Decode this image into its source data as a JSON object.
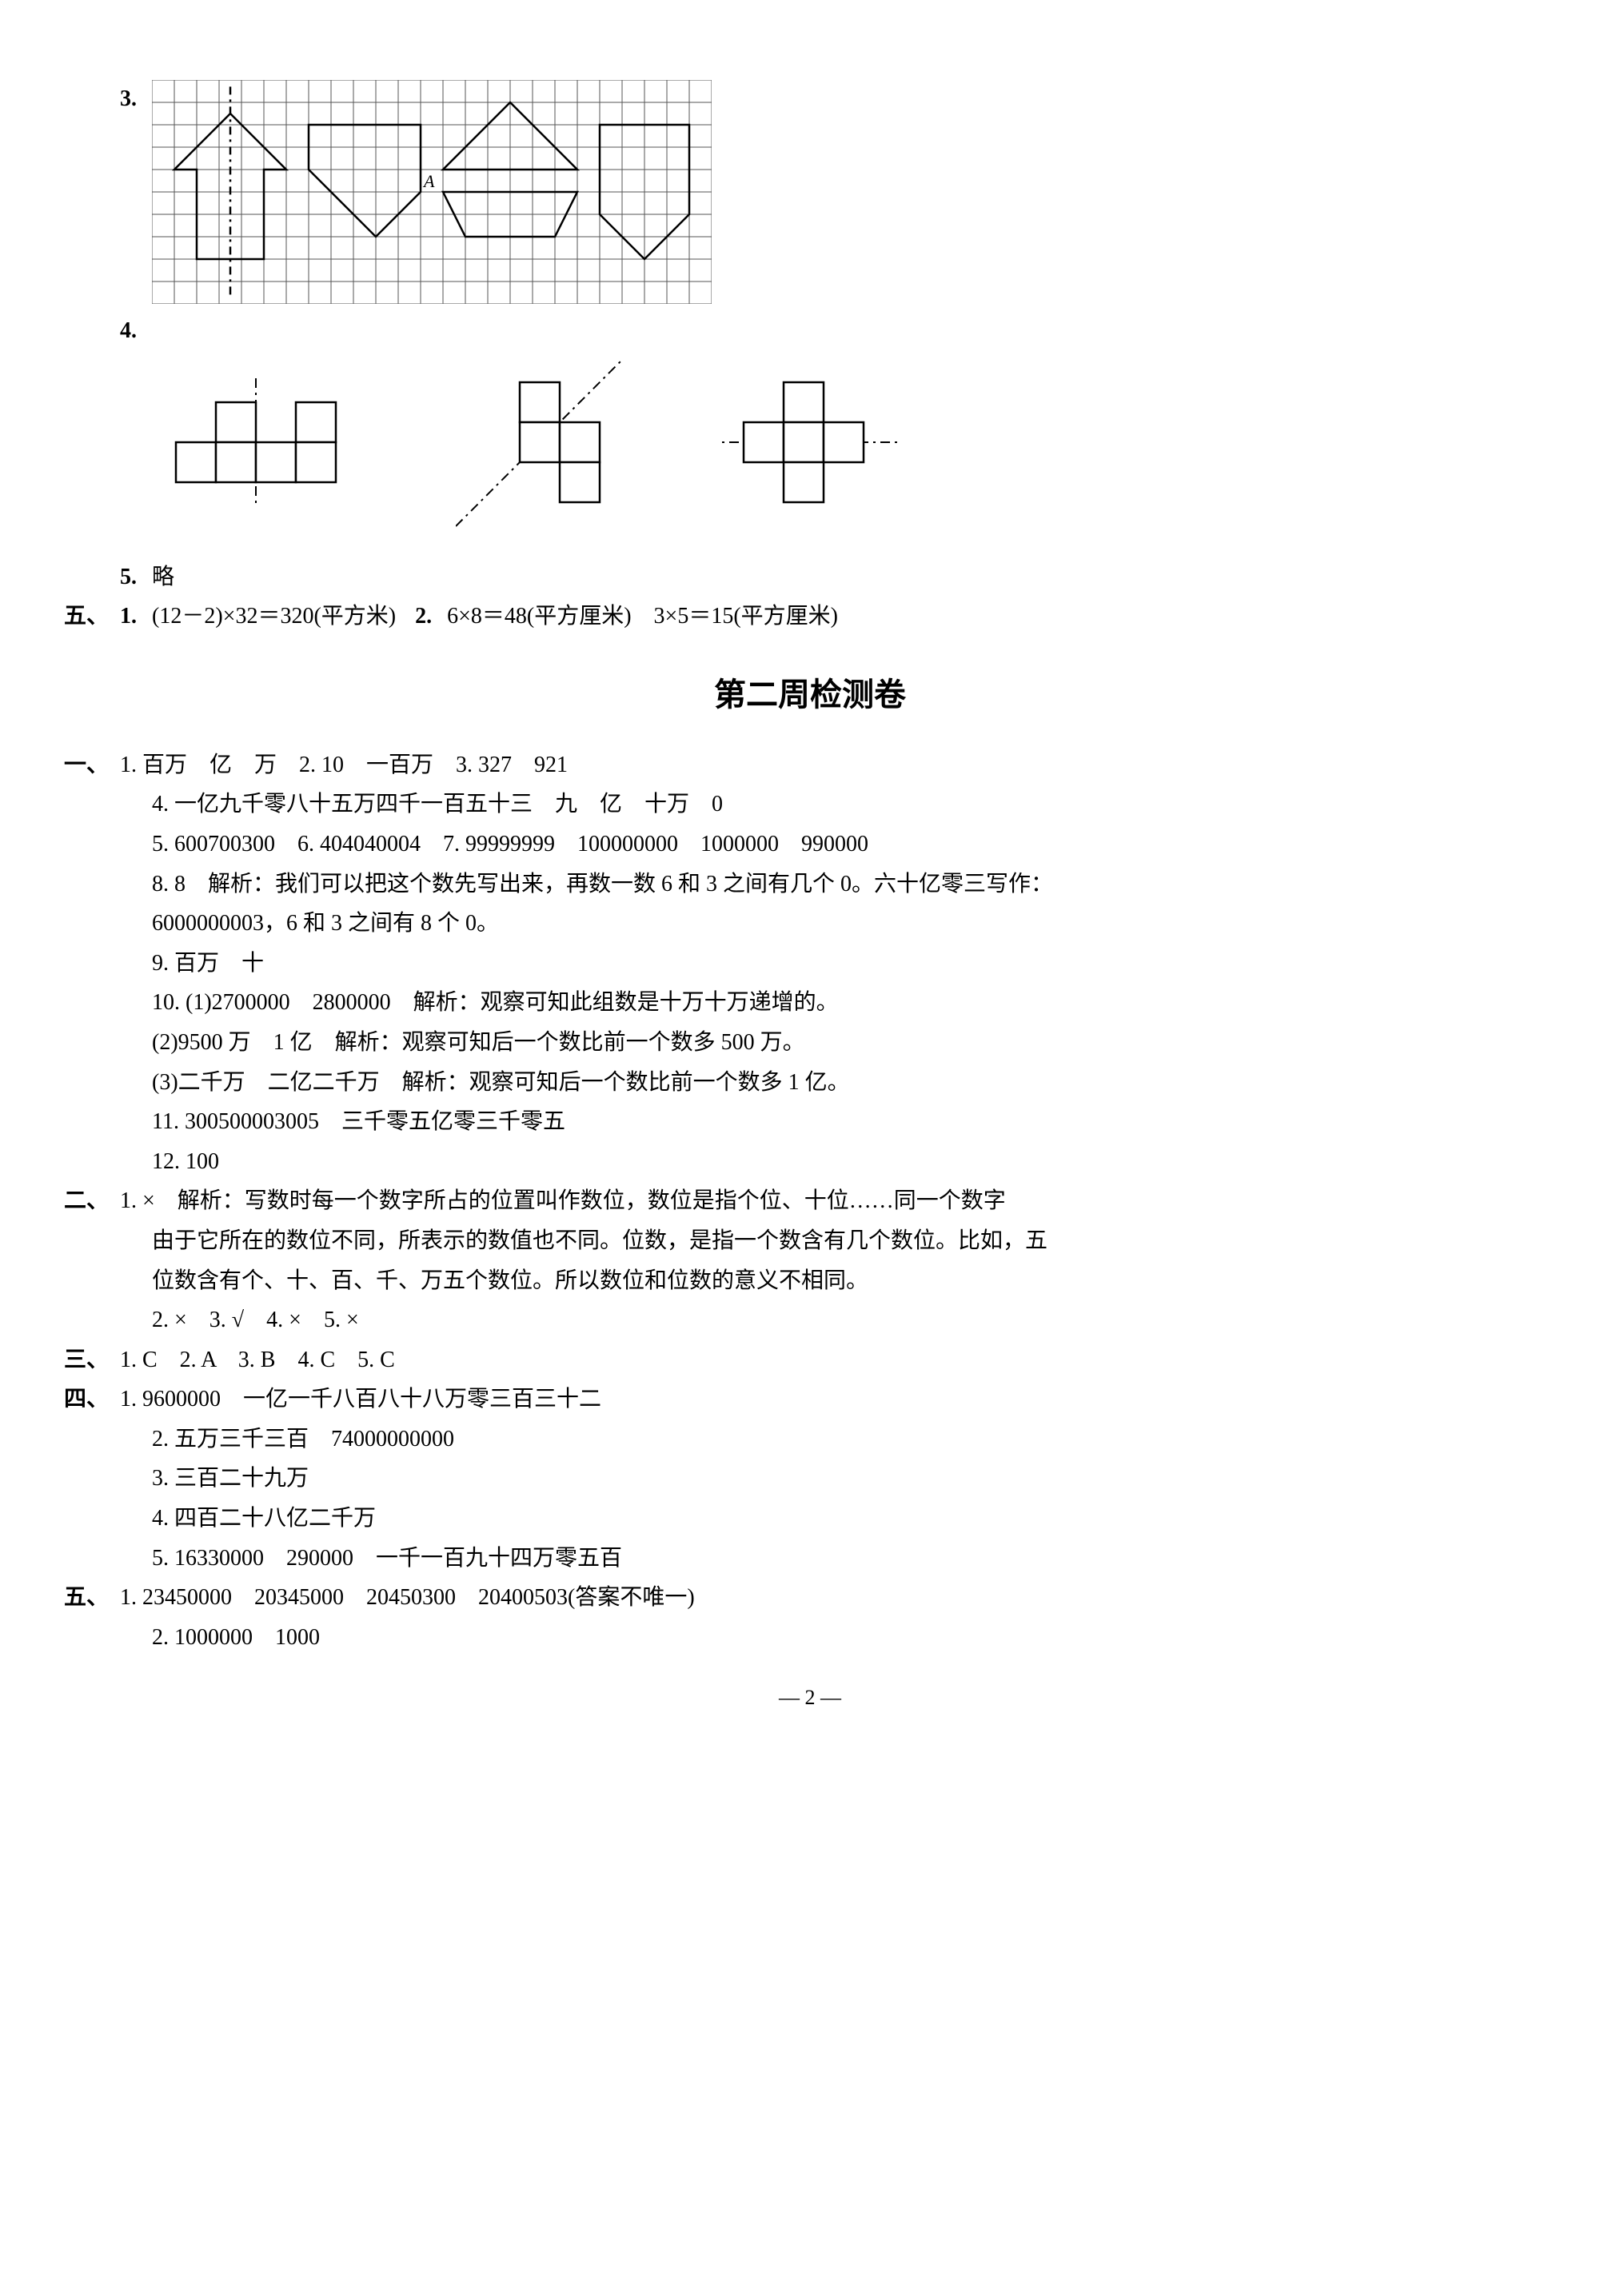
{
  "grid": {
    "type": "diagram",
    "cols": 25,
    "rows": 10,
    "cell_size": 28,
    "stroke_color": "#555555",
    "shape_stroke": "#000000",
    "background": "#ffffff",
    "label_A": "A",
    "label_fontsize": 22,
    "shapes": [
      {
        "type": "polyline",
        "points": [
          [
            2,
            8
          ],
          [
            2,
            4
          ],
          [
            1,
            4
          ],
          [
            3.5,
            1.5
          ],
          [
            6,
            4
          ],
          [
            5,
            4
          ],
          [
            5,
            8
          ],
          [
            2,
            8
          ]
        ],
        "closed": true
      },
      {
        "type": "line",
        "points": [
          [
            3.5,
            0.3
          ],
          [
            3.5,
            9.6
          ]
        ],
        "dash": true
      },
      {
        "type": "polyline",
        "points": [
          [
            7,
            2
          ],
          [
            12,
            2
          ],
          [
            12,
            5
          ],
          [
            10,
            7
          ],
          [
            7,
            4
          ],
          [
            7,
            2
          ]
        ],
        "closed": true
      },
      {
        "type": "polyline",
        "points": [
          [
            13,
            4
          ],
          [
            16,
            1
          ],
          [
            19,
            4
          ],
          [
            13,
            4
          ]
        ],
        "closed": true
      },
      {
        "type": "polyline",
        "points": [
          [
            13,
            5
          ],
          [
            14,
            7
          ],
          [
            18,
            7
          ],
          [
            19,
            5
          ],
          [
            13,
            5
          ]
        ],
        "closed": true
      },
      {
        "type": "polyline",
        "points": [
          [
            20,
            2
          ],
          [
            24,
            2
          ],
          [
            24,
            6
          ],
          [
            22,
            8
          ],
          [
            20,
            6
          ],
          [
            20,
            2
          ]
        ],
        "closed": true
      }
    ]
  },
  "nets": {
    "type": "diagram",
    "cell_size": 50,
    "stroke_color": "#000000",
    "background": "#ffffff",
    "dash_color": "#000000",
    "figures": [
      {
        "cells": [
          [
            0,
            1
          ],
          [
            1,
            0
          ],
          [
            1,
            1
          ],
          [
            2,
            1
          ],
          [
            3,
            0
          ],
          [
            3,
            1
          ]
        ],
        "axis": {
          "type": "vertical",
          "x": 2,
          "y1": -0.6,
          "y2": 2.6
        }
      },
      {
        "cells": [
          [
            1,
            0
          ],
          [
            1,
            1
          ],
          [
            2,
            1
          ],
          [
            2,
            2
          ]
        ],
        "axis": {
          "type": "diagonal",
          "x1": -0.6,
          "y1": 3.6,
          "x2": 3.6,
          "y2": -0.6
        }
      },
      {
        "cells": [
          [
            1,
            0
          ],
          [
            0,
            1
          ],
          [
            1,
            1
          ],
          [
            2,
            1
          ],
          [
            1,
            2
          ]
        ],
        "axis": {
          "type": "horizontal",
          "y": 1.5,
          "x1": -0.9,
          "x2": 3.9
        }
      }
    ]
  },
  "q3_label": "3.",
  "q4_label": "4.",
  "q5": {
    "num": "5.",
    "text": "略"
  },
  "sec5": {
    "label": "五、",
    "i1": {
      "num": "1.",
      "text": "(12－2)×32＝320(平方米)"
    },
    "i2": {
      "num": "2.",
      "text": "6×8＝48(平方厘米)　3×5＝15(平方厘米)"
    }
  },
  "title": "第二周检测卷",
  "s1": {
    "label": "一、",
    "l1": "1. 百万　亿　万　2. 10　一百万　3. 327　921",
    "l4": "4. 一亿九千零八十五万四千一百五十三　九　亿　十万　0",
    "l5": "5. 600700300　6. 404040004　7. 99999999　100000000　1000000　990000",
    "l8a": "8. 8　解析：我们可以把这个数先写出来，再数一数 6 和 3 之间有几个 0。六十亿零三写作：",
    "l8b": "6000000003，6 和 3 之间有 8 个 0。",
    "l9": "9. 百万　十",
    "l10a": "10. (1)2700000　2800000　解析：观察可知此组数是十万十万递增的。",
    "l10b": "(2)9500 万　1 亿　解析：观察可知后一个数比前一个数多 500 万。",
    "l10c": "(3)二千万　二亿二千万　解析：观察可知后一个数比前一个数多 1 亿。",
    "l11": "11. 300500003005　三千零五亿零三千零五",
    "l12": "12. 100"
  },
  "s2": {
    "label": "二、",
    "l1a": "1. ×　解析：写数时每一个数字所占的位置叫作数位，数位是指个位、十位……同一个数字",
    "l1b": "由于它所在的数位不同，所表示的数值也不同。位数，是指一个数含有几个数位。比如，五",
    "l1c": "位数含有个、十、百、千、万五个数位。所以数位和位数的意义不相同。",
    "l2": "2. ×　3. √　4. ×　5. ×"
  },
  "s3": {
    "label": "三、",
    "l1": "1. C　2. A　3. B　4. C　5. C"
  },
  "s4": {
    "label": "四、",
    "l1": "1. 9600000　一亿一千八百八十八万零三百三十二",
    "l2": "2. 五万三千三百　74000000000",
    "l3": "3. 三百二十九万",
    "l4": "4. 四百二十八亿二千万",
    "l5": "5. 16330000　290000　一千一百九十四万零五百"
  },
  "s5b": {
    "label": "五、",
    "l1": "1. 23450000　20345000　20450300　20400503(答案不唯一)",
    "l2": "2. 1000000　1000"
  },
  "page_number": "— 2 —"
}
